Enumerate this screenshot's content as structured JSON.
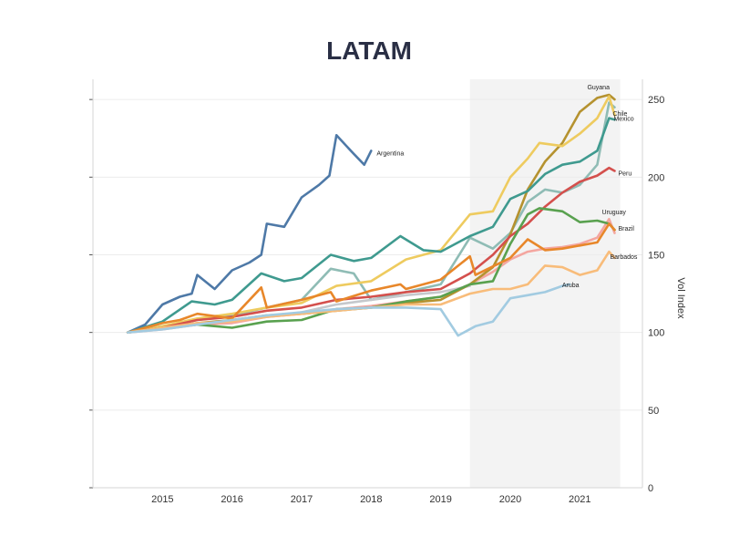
{
  "chart_data": {
    "type": "line",
    "title": "LATAM",
    "xlabel": "",
    "ylabel": "Vol Index",
    "x_tick_labels": [
      "2015",
      "2016",
      "2017",
      "2018",
      "2019",
      "2020",
      "2021"
    ],
    "y_tick_labels": [
      "0",
      "50",
      "100",
      "150",
      "200",
      "250"
    ],
    "y_ticks": [
      0,
      50,
      100,
      150,
      200,
      250
    ],
    "ylim": [
      0,
      263
    ],
    "xlim": [
      2014.0,
      2021.9
    ],
    "y_axis_position": "right",
    "grid": "horizontal",
    "highlight_band": {
      "x_start": 2019.42,
      "x_end": 2021.58,
      "color": "#f3f3f3"
    },
    "series": [
      {
        "name": "Argentina",
        "color": "#4e79a7",
        "x": [
          2014.5,
          2014.75,
          2015.0,
          2015.25,
          2015.42,
          2015.5,
          2015.75,
          2016.0,
          2016.25,
          2016.42,
          2016.5,
          2016.75,
          2017.0,
          2017.25,
          2017.4,
          2017.5,
          2017.75,
          2017.9,
          2018.0
        ],
        "y": [
          100,
          105,
          118,
          123,
          125,
          137,
          128,
          140,
          145,
          150,
          170,
          168,
          187,
          195,
          201,
          227,
          215,
          208,
          217
        ]
      },
      {
        "name": "Guyana",
        "color": "#b5922f",
        "x": [
          2014.5,
          2015.0,
          2015.5,
          2016.0,
          2016.5,
          2017.0,
          2017.5,
          2018.0,
          2018.5,
          2019.0,
          2019.42,
          2019.75,
          2020.0,
          2020.25,
          2020.5,
          2020.75,
          2021.0,
          2021.25,
          2021.42,
          2021.5
        ],
        "y": [
          100,
          103,
          106,
          108,
          111,
          112,
          114,
          116,
          119,
          121,
          131,
          142,
          163,
          192,
          210,
          222,
          242,
          251,
          253,
          250
        ]
      },
      {
        "name": "Chile",
        "color": "#eecb5f",
        "x": [
          2014.5,
          2015.0,
          2015.5,
          2016.0,
          2016.5,
          2017.0,
          2017.5,
          2018.0,
          2018.5,
          2019.0,
          2019.42,
          2019.75,
          2020.0,
          2020.25,
          2020.42,
          2020.75,
          2021.0,
          2021.25,
          2021.42,
          2021.5
        ],
        "y": [
          100,
          104,
          109,
          112,
          116,
          119,
          130,
          133,
          147,
          153,
          176,
          178,
          200,
          212,
          222,
          220,
          228,
          238,
          252,
          240
        ]
      },
      {
        "name": "Mexico",
        "color": "#3f9a8f",
        "x": [
          2014.5,
          2015.0,
          2015.42,
          2015.75,
          2016.0,
          2016.42,
          2016.75,
          2017.0,
          2017.42,
          2017.75,
          2018.0,
          2018.42,
          2018.75,
          2019.0,
          2019.42,
          2019.75,
          2020.0,
          2020.25,
          2020.5,
          2020.75,
          2021.0,
          2021.25,
          2021.42,
          2021.5
        ],
        "y": [
          100,
          107,
          120,
          118,
          121,
          138,
          133,
          135,
          150,
          146,
          148,
          162,
          153,
          152,
          162,
          168,
          186,
          191,
          202,
          208,
          210,
          217,
          238,
          237
        ]
      },
      {
        "name": "Peru",
        "color": "#d4504d",
        "x": [
          2014.5,
          2015.0,
          2015.5,
          2016.0,
          2016.5,
          2017.0,
          2017.5,
          2018.0,
          2018.5,
          2019.0,
          2019.42,
          2019.75,
          2020.0,
          2020.25,
          2020.5,
          2020.75,
          2021.0,
          2021.25,
          2021.42,
          2021.5
        ],
        "y": [
          100,
          103,
          108,
          110,
          114,
          116,
          121,
          123,
          126,
          128,
          138,
          150,
          162,
          170,
          181,
          190,
          197,
          201,
          206,
          204
        ]
      },
      {
        "name": "Uruguay",
        "color": "#59a14f",
        "x": [
          2014.5,
          2015.0,
          2015.5,
          2016.0,
          2016.5,
          2017.0,
          2017.5,
          2018.0,
          2018.5,
          2019.0,
          2019.42,
          2019.75,
          2020.0,
          2020.25,
          2020.42,
          2020.75,
          2021.0,
          2021.25,
          2021.42,
          2021.5
        ],
        "y": [
          100,
          103,
          105,
          103,
          107,
          108,
          115,
          116,
          120,
          123,
          131,
          133,
          157,
          176,
          180,
          178,
          171,
          172,
          170,
          166
        ]
      },
      {
        "name": "Brazil",
        "color": "#e8872a",
        "x": [
          2014.5,
          2015.0,
          2015.25,
          2015.5,
          2016.0,
          2016.42,
          2016.5,
          2017.0,
          2017.42,
          2017.5,
          2018.0,
          2018.42,
          2018.5,
          2019.0,
          2019.42,
          2019.5,
          2020.0,
          2020.25,
          2020.5,
          2020.75,
          2021.0,
          2021.25,
          2021.42,
          2021.5
        ],
        "y": [
          100,
          106,
          108,
          112,
          109,
          129,
          116,
          121,
          126,
          120,
          127,
          131,
          128,
          134,
          149,
          137,
          148,
          160,
          153,
          154,
          156,
          158,
          170,
          166
        ]
      },
      {
        "name": "Barbados",
        "color": "#f8bc7a",
        "x": [
          2014.5,
          2015.0,
          2015.5,
          2016.0,
          2016.5,
          2017.0,
          2017.5,
          2018.0,
          2018.5,
          2019.0,
          2019.42,
          2019.75,
          2020.0,
          2020.25,
          2020.5,
          2020.75,
          2021.0,
          2021.25,
          2021.42,
          2021.5
        ],
        "y": [
          100,
          103,
          106,
          107,
          110,
          112,
          114,
          116,
          118,
          118,
          125,
          128,
          128,
          131,
          143,
          142,
          137,
          140,
          152,
          148
        ]
      },
      {
        "name": "Aruba",
        "color": "#a2cbe1",
        "x": [
          2014.5,
          2015.0,
          2015.5,
          2016.0,
          2016.5,
          2017.0,
          2017.5,
          2018.0,
          2018.5,
          2019.0,
          2019.25,
          2019.5,
          2019.75,
          2020.0,
          2020.25,
          2020.5,
          2020.75,
          2020.85
        ],
        "y": [
          100,
          102,
          105,
          108,
          111,
          113,
          115,
          116,
          116,
          115,
          98,
          104,
          107,
          122,
          124,
          126,
          130,
          131
        ]
      },
      {
        "series_role": "unlabeled",
        "color": "#8fbcb5",
        "x": [
          2014.5,
          2015.0,
          2015.5,
          2016.0,
          2016.5,
          2017.0,
          2017.42,
          2017.75,
          2018.0,
          2018.5,
          2019.0,
          2019.42,
          2019.75,
          2020.0,
          2020.25,
          2020.5,
          2020.75,
          2021.0,
          2021.25,
          2021.42,
          2021.5
        ],
        "y": [
          100,
          104,
          108,
          111,
          116,
          121,
          141,
          138,
          121,
          126,
          131,
          161,
          154,
          164,
          184,
          192,
          190,
          195,
          208,
          248,
          245
        ]
      },
      {
        "series_role": "unlabeled",
        "color": "#f4a6a0",
        "x": [
          2014.5,
          2015.0,
          2015.5,
          2016.0,
          2016.5,
          2017.0,
          2017.5,
          2018.0,
          2018.5,
          2019.0,
          2019.42,
          2019.75,
          2020.0,
          2020.25,
          2020.5,
          2020.75,
          2021.0,
          2021.25,
          2021.42,
          2021.5
        ],
        "y": [
          100,
          102,
          105,
          106,
          110,
          112,
          115,
          117,
          120,
          123,
          131,
          139,
          147,
          152,
          154,
          155,
          157,
          161,
          173,
          164
        ]
      },
      {
        "series_role": "unlabeled",
        "color": "#c5c8cc",
        "x": [
          2014.5,
          2015.0,
          2015.5,
          2016.0,
          2016.5,
          2017.0,
          2017.5,
          2018.0,
          2018.5,
          2019.0,
          2019.42
        ],
        "y": [
          100,
          103,
          105,
          108,
          110,
          113,
          118,
          121,
          124,
          126,
          130
        ]
      }
    ]
  }
}
